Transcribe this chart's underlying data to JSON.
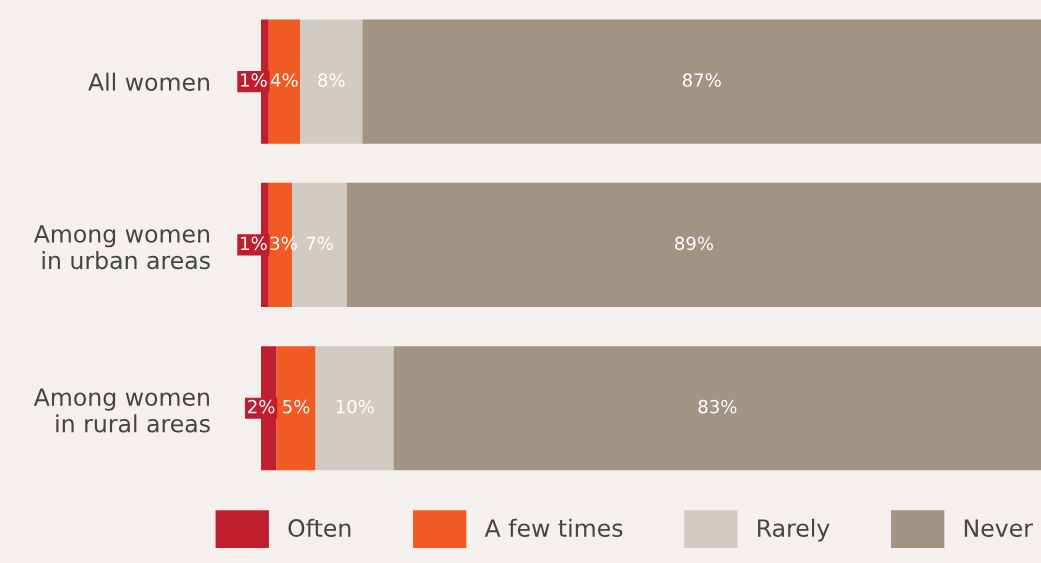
{
  "chart_data": {
    "type": "bar",
    "orientation": "horizontal",
    "stacked": true,
    "categories": [
      "All women",
      "Among women\nin urban areas",
      "Among women\nin rural areas"
    ],
    "series": [
      {
        "name": "Often",
        "color": "#be1e2d",
        "values": [
          1,
          1,
          2
        ],
        "value_labels": [
          "1%",
          "1%",
          "2%"
        ]
      },
      {
        "name": "A few times",
        "color": "#f15a22",
        "values": [
          4,
          3,
          5
        ],
        "value_labels": [
          "4%",
          "3%",
          "5%"
        ]
      },
      {
        "name": "Rarely",
        "color": "#d2cbc3",
        "values": [
          8,
          7,
          10
        ],
        "value_labels": [
          "8%",
          "7%",
          "10%"
        ]
      },
      {
        "name": "Never",
        "color": "#a19483",
        "values": [
          87,
          89,
          83
        ],
        "value_labels": [
          "87%",
          "89%",
          "83%"
        ]
      }
    ],
    "tick_labels": "y",
    "legend": "bottom",
    "grid": false
  }
}
